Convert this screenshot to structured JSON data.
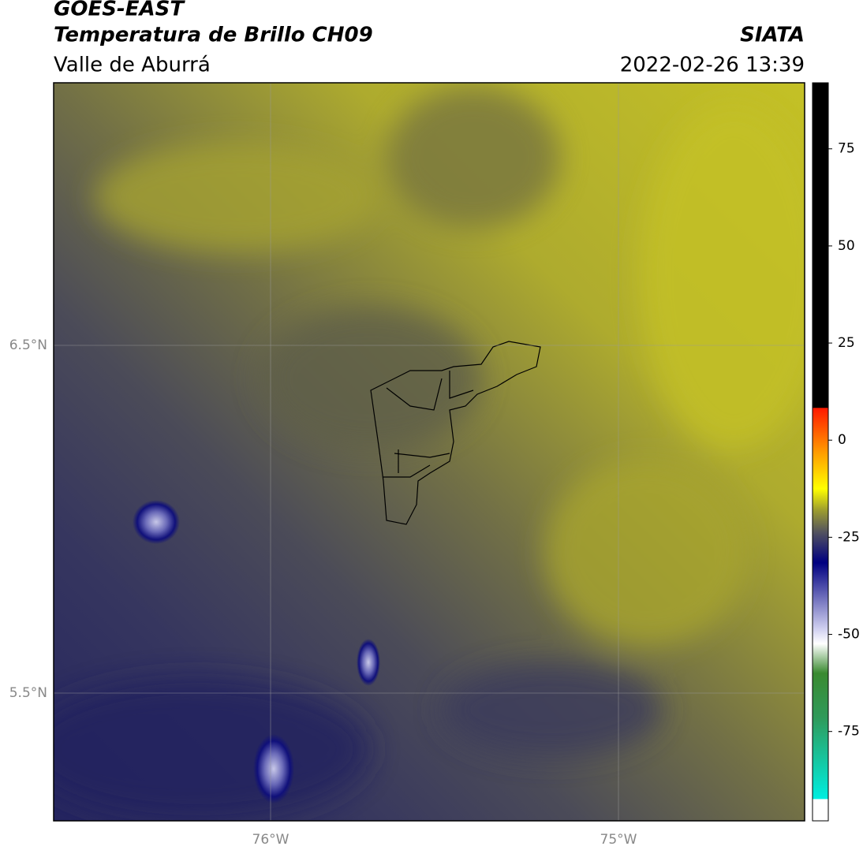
{
  "header": {
    "title": "GOES-EAST",
    "subtitle": "Temperatura de Brillo CH09",
    "region": "Valle de Aburrá",
    "source": "SIATA",
    "datetime": "2022-02-26 13:39"
  },
  "map": {
    "lat_labels": [
      "6.5°N",
      "5.5°N"
    ],
    "lon_labels": [
      "76°W",
      "75°W"
    ]
  },
  "colorbar": {
    "lim": [
      -98,
      92
    ],
    "ticks": [
      75,
      50,
      25,
      0,
      -25,
      -50,
      -75
    ]
  }
}
